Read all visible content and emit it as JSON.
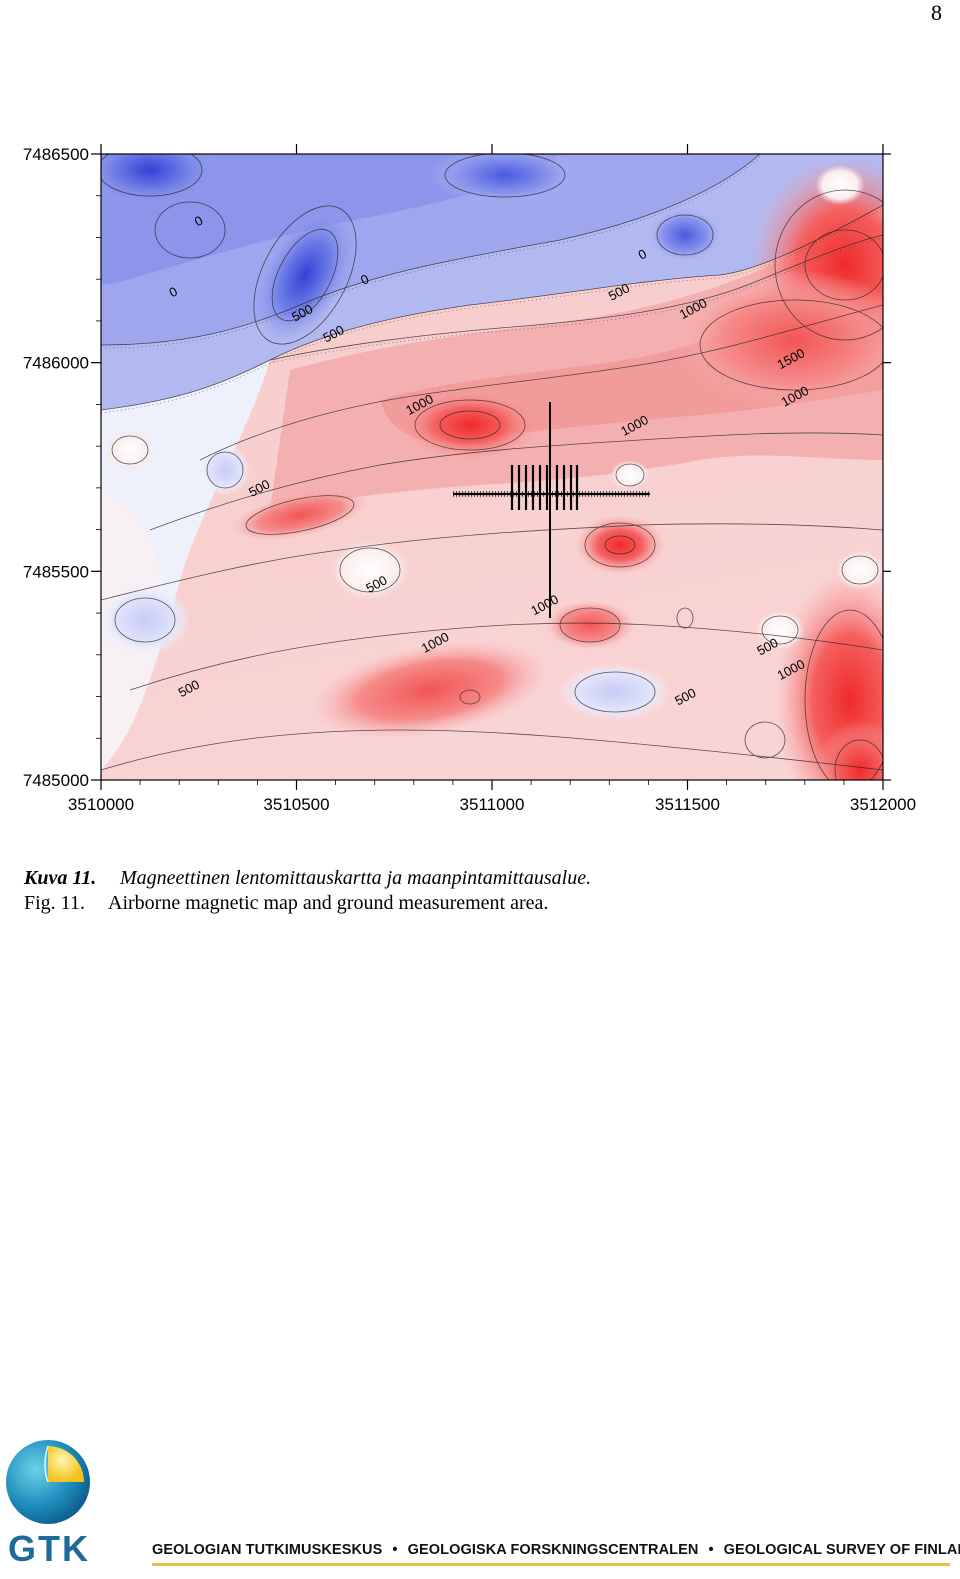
{
  "page": {
    "number": "8"
  },
  "map": {
    "y_ticks": [
      "7486500",
      "7486000",
      "7485500",
      "7485000"
    ],
    "x_ticks": [
      "3510000",
      "3510500",
      "3511000",
      "3511500",
      "3512000"
    ],
    "x_range": [
      3510000,
      3512000
    ],
    "y_range": [
      7485000,
      7486500
    ],
    "contour_labels": [
      {
        "text": "0",
        "x": 3510255,
        "y": 7486330
      },
      {
        "text": "0",
        "x": 3510190,
        "y": 7486160
      },
      {
        "text": "500",
        "x": 3510520,
        "y": 7486110
      },
      {
        "text": "500",
        "x": 3510600,
        "y": 7486060
      },
      {
        "text": "0",
        "x": 3510680,
        "y": 7486190
      },
      {
        "text": "0",
        "x": 3511390,
        "y": 7486250
      },
      {
        "text": "500",
        "x": 3511330,
        "y": 7486160
      },
      {
        "text": "1000",
        "x": 3511520,
        "y": 7486120
      },
      {
        "text": "1500",
        "x": 3511770,
        "y": 7486000
      },
      {
        "text": "1000",
        "x": 3511780,
        "y": 7485910
      },
      {
        "text": "1000",
        "x": 3510820,
        "y": 7485890
      },
      {
        "text": "1000",
        "x": 3511370,
        "y": 7485840
      },
      {
        "text": "500",
        "x": 3510410,
        "y": 7485690
      },
      {
        "text": "500",
        "x": 3510710,
        "y": 7485460
      },
      {
        "text": "1000",
        "x": 3511140,
        "y": 7485410
      },
      {
        "text": "1000",
        "x": 3510860,
        "y": 7485320
      },
      {
        "text": "500",
        "x": 3511710,
        "y": 7485310
      },
      {
        "text": "1000",
        "x": 3511770,
        "y": 7485255
      },
      {
        "text": "500",
        "x": 3511500,
        "y": 7485190
      },
      {
        "text": "500",
        "x": 3510230,
        "y": 7485210
      }
    ],
    "colors": {
      "low": "#3a4fd8",
      "mid": "#ffffff",
      "high": "#f23a3a"
    }
  },
  "caption": {
    "fi_label": "Kuva 11.",
    "fi_text": "Magneettinen lentomittauskartta ja maanpintamittausalue.",
    "en_label": "Fig. 11.",
    "en_text": "Airborne magnetic map and ground measurement area."
  },
  "footer": {
    "logo_text": "GTK",
    "org_fi": "GEOLOGIAN TUTKIMUSKESKUS",
    "org_se": "GEOLOGISKA FORSKNINGSCENTRALEN",
    "org_en": "GEOLOGICAL SURVEY OF FINLAND"
  }
}
